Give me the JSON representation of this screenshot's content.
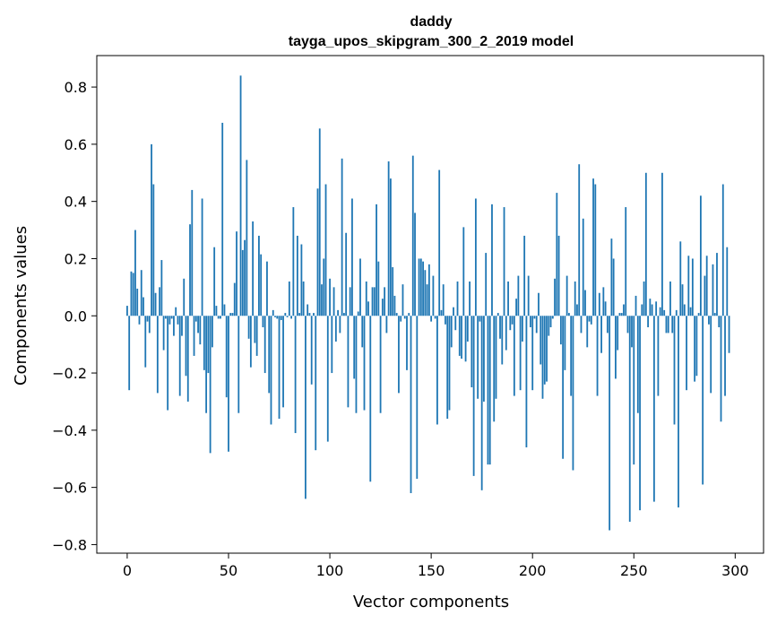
{
  "chart_data": {
    "type": "bar",
    "title": "daddy",
    "subtitle": "tayga_upos_skipgram_300_2_2019 model",
    "xlabel": "Vector components",
    "ylabel": "Components values",
    "xlim": [
      -15,
      314
    ],
    "ylim": [
      -0.83,
      0.91
    ],
    "xticks": [
      0,
      50,
      100,
      150,
      200,
      250,
      300
    ],
    "xtick_labels": [
      "0",
      "50",
      "100",
      "150",
      "200",
      "250",
      "300"
    ],
    "yticks": [
      -0.8,
      -0.6,
      -0.4,
      -0.2,
      0.0,
      0.2,
      0.4,
      0.6,
      0.8
    ],
    "ytick_labels": [
      "−0.8",
      "−0.6",
      "−0.4",
      "−0.2",
      "0.0",
      "0.2",
      "0.4",
      "0.6",
      "0.8"
    ],
    "bar_color": "#1f77b4",
    "grid": false,
    "values": [
      0.035,
      -0.26,
      0.155,
      0.15,
      0.3,
      0.095,
      -0.03,
      0.16,
      0.065,
      -0.18,
      -0.02,
      -0.06,
      0.6,
      0.46,
      0.08,
      -0.27,
      0.1,
      0.195,
      -0.12,
      -0.01,
      -0.33,
      -0.03,
      -0.01,
      -0.07,
      0.03,
      -0.03,
      -0.28,
      -0.07,
      0.13,
      -0.21,
      -0.3,
      0.32,
      0.44,
      -0.14,
      -0.02,
      -0.06,
      -0.1,
      0.41,
      -0.19,
      -0.34,
      -0.2,
      -0.48,
      -0.11,
      0.24,
      0.035,
      -0.01,
      -0.01,
      0.675,
      0.04,
      -0.285,
      -0.475,
      0.01,
      0.01,
      0.115,
      0.295,
      -0.34,
      0.84,
      0.23,
      0.265,
      0.545,
      -0.08,
      -0.18,
      0.33,
      -0.095,
      -0.14,
      0.28,
      0.215,
      -0.04,
      -0.2,
      0.19,
      -0.27,
      -0.38,
      0.02,
      -0.005,
      -0.01,
      -0.36,
      -0.015,
      -0.32,
      0.01,
      -0.005,
      0.12,
      -0.01,
      0.38,
      -0.41,
      0.28,
      0.01,
      0.25,
      0.12,
      -0.64,
      0.04,
      0.01,
      -0.24,
      0.01,
      -0.47,
      0.445,
      0.655,
      0.11,
      0.2,
      0.46,
      -0.44,
      0.13,
      -0.2,
      0.1,
      -0.09,
      0.02,
      -0.06,
      0.55,
      0.01,
      0.29,
      -0.32,
      0.1,
      0.41,
      -0.22,
      -0.34,
      0.015,
      0.2,
      -0.11,
      -0.33,
      0.12,
      0.05,
      -0.58,
      0.1,
      0.1,
      0.39,
      0.19,
      -0.34,
      0.06,
      0.1,
      -0.06,
      0.54,
      0.48,
      0.17,
      0.07,
      0.01,
      -0.27,
      -0.02,
      0.11,
      -0.01,
      -0.19,
      0.01,
      -0.62,
      0.56,
      0.36,
      -0.57,
      0.2,
      0.2,
      0.19,
      0.16,
      0.11,
      0.18,
      -0.02,
      0.14,
      -0.01,
      -0.38,
      0.51,
      0.02,
      0.11,
      -0.03,
      -0.36,
      -0.33,
      -0.11,
      0.03,
      -0.05,
      0.12,
      -0.14,
      -0.15,
      0.31,
      -0.16,
      -0.09,
      0.12,
      -0.25,
      -0.56,
      0.41,
      -0.29,
      -0.02,
      -0.61,
      -0.3,
      0.22,
      -0.52,
      -0.52,
      0.39,
      -0.37,
      -0.29,
      0.01,
      -0.08,
      -0.17,
      0.38,
      -0.12,
      0.12,
      -0.05,
      -0.03,
      -0.28,
      0.06,
      0.14,
      -0.26,
      -0.09,
      0.28,
      -0.46,
      0.14,
      -0.04,
      -0.26,
      -0.01,
      -0.06,
      0.08,
      -0.17,
      -0.29,
      -0.24,
      -0.23,
      -0.07,
      -0.04,
      -0.01,
      0.13,
      0.43,
      0.28,
      -0.1,
      -0.5,
      -0.19,
      0.14,
      0.01,
      -0.28,
      -0.54,
      0.12,
      0.04,
      0.53,
      -0.06,
      0.34,
      0.09,
      -0.11,
      -0.02,
      -0.03,
      0.48,
      0.46,
      -0.28,
      0.08,
      -0.13,
      0.1,
      0.05,
      -0.06,
      -0.75,
      0.27,
      0.2,
      -0.22,
      -0.12,
      0.01,
      0.01,
      0.04,
      0.38,
      -0.06,
      -0.72,
      -0.11,
      -0.52,
      0.07,
      -0.34,
      -0.68,
      0.04,
      0.12,
      0.5,
      -0.04,
      0.06,
      0.04,
      -0.65,
      0.05,
      -0.28,
      0.03,
      0.5,
      0.02,
      -0.06,
      -0.06,
      0.12,
      -0.06,
      -0.38,
      0.02,
      -0.67,
      0.26,
      0.11,
      0.04,
      -0.26,
      0.21,
      0.03,
      0.2,
      -0.23,
      -0.21,
      0.01,
      0.42,
      -0.59,
      0.14,
      0.21,
      -0.03,
      -0.27,
      0.18,
      0.01,
      0.22,
      -0.04,
      -0.37,
      0.46,
      -0.28,
      0.24,
      -0.13
    ]
  }
}
